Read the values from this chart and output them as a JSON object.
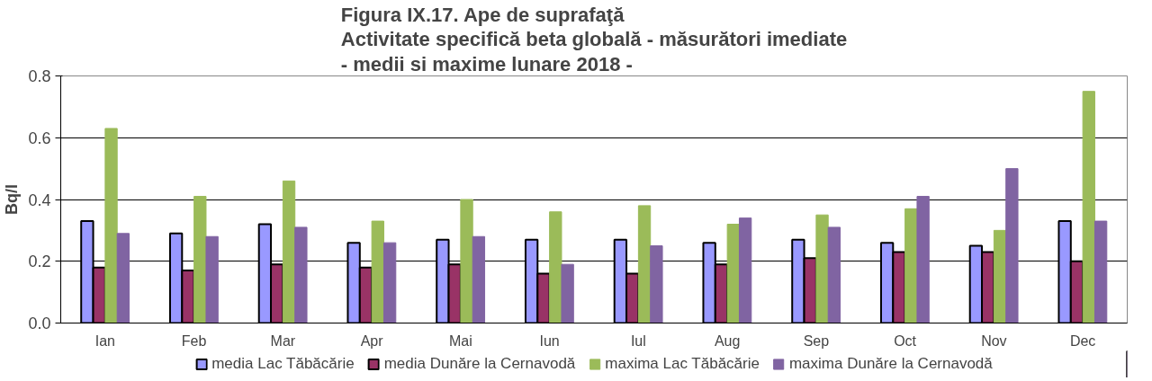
{
  "chart_data": {
    "type": "bar",
    "title": "Figura IX.17. Ape de suprafaţă\nActivitate specifică beta globală - măsurători imediate\n- medii si maxime lunare 2018 -",
    "ylabel": "Bq/l",
    "categories": [
      "Ian",
      "Feb",
      "Mar",
      "Apr",
      "Mai",
      "Iun",
      "Iul",
      "Aug",
      "Sep",
      "Oct",
      "Nov",
      "Dec"
    ],
    "series": [
      {
        "name": "media Lac Tăbăcărie",
        "color": "#9999ff",
        "values": [
          0.33,
          0.29,
          0.32,
          0.26,
          0.27,
          0.27,
          0.27,
          0.26,
          0.27,
          0.26,
          0.25,
          0.33
        ]
      },
      {
        "name": "media Dunăre la Cernavodă",
        "color": "#993366",
        "values": [
          0.18,
          0.17,
          0.19,
          0.18,
          0.19,
          0.16,
          0.16,
          0.19,
          0.21,
          0.23,
          0.23,
          0.2
        ]
      },
      {
        "name": "maxima Lac Tăbăcărie",
        "color": "#9bbb59",
        "values": [
          0.63,
          0.41,
          0.46,
          0.33,
          0.4,
          0.36,
          0.38,
          0.32,
          0.35,
          0.37,
          0.3,
          0.75
        ]
      },
      {
        "name": "maxima Dunăre la Cernavodă",
        "color": "#8064a2",
        "values": [
          0.29,
          0.28,
          0.31,
          0.26,
          0.28,
          0.19,
          0.25,
          0.34,
          0.31,
          0.41,
          0.5,
          0.33
        ]
      }
    ],
    "ylim": [
      0,
      0.8
    ],
    "yticks": [
      {
        "value": 0,
        "label": "0.0"
      },
      {
        "value": 0.2,
        "label": "0.2"
      },
      {
        "value": 0.4,
        "label": "0.4"
      },
      {
        "value": 0.6,
        "label": "0.6"
      },
      {
        "value": 0.8,
        "label": "0.8"
      }
    ],
    "grid": "y",
    "legend": "bottom"
  }
}
